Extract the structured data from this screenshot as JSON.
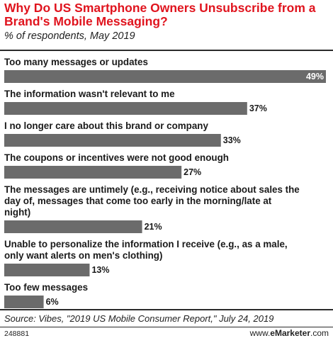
{
  "header": {
    "title": "Why Do US Smartphone Owners Unsubscribe from a Brand's Mobile Messaging?",
    "subtitle": "% of respondents, May 2019"
  },
  "footer": {
    "source": "Source: Vibes, \"2019 US Mobile Consumer Report,\" July 24, 2019",
    "chart_id": "248881",
    "brand_prefix": "www.",
    "brand_name": "eMarketer",
    "brand_suffix": ".com"
  },
  "colors": {
    "bar": "#6b6b6b",
    "title": "#e0141e"
  },
  "chart_data": {
    "type": "bar",
    "orientation": "horizontal",
    "title": "Why Do US Smartphone Owners Unsubscribe from a Brand's Mobile Messaging?",
    "subtitle": "% of respondents, May 2019",
    "xlim": [
      0,
      49
    ],
    "grid": false,
    "categories": [
      [
        "Too many messages or updates"
      ],
      [
        "The information wasn't relevant to me"
      ],
      [
        "I no longer care about this brand or company"
      ],
      [
        "The coupons or incentives were not good enough"
      ],
      [
        "The messages are untimely (e.g., receiving notice about sales the",
        "day of, messages that come too early in the morning/late at",
        "night)"
      ],
      [
        "Unable to personalize the information I receive (e.g., as a male,",
        "only want alerts on men's clothing)"
      ],
      [
        "Too few messages"
      ]
    ],
    "values": [
      49,
      37,
      33,
      27,
      21,
      13,
      6
    ],
    "value_labels": [
      "49%",
      "37%",
      "33%",
      "27%",
      "21%",
      "13%",
      "6%"
    ]
  }
}
